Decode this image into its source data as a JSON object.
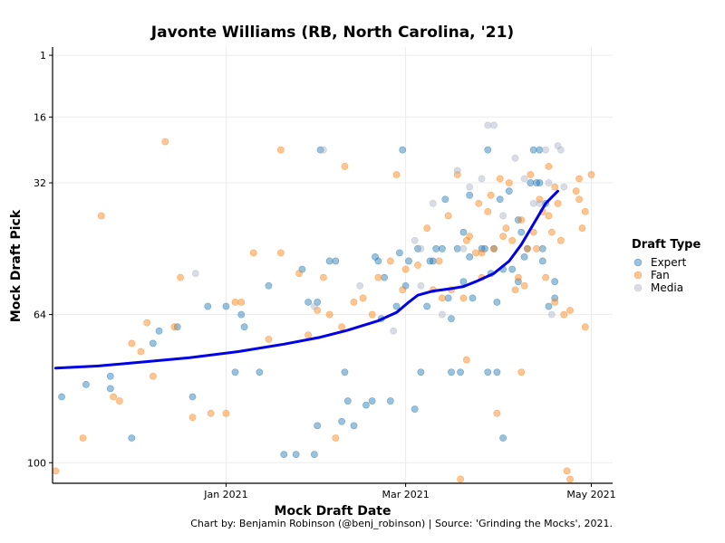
{
  "chart_data": {
    "type": "scatter",
    "title": "Javonte Williams (RB, North Carolina, '21)",
    "xlabel": "Mock Draft Date",
    "ylabel": "Mock Draft Pick",
    "caption": "Chart by: Benjamin Robinson (@benj_robinson) | Source: 'Grinding the Mocks', 2021.",
    "legend_title": "Draft Type",
    "legend_position": "right",
    "x_ticks": [
      {
        "label": "Jan 2021",
        "date": "2021-01-01"
      },
      {
        "label": "Mar 2021",
        "date": "2021-03-01"
      },
      {
        "label": "May 2021",
        "date": "2021-05-01"
      }
    ],
    "y_ticks": [
      1,
      16,
      32,
      64,
      100
    ],
    "xlim": [
      "2020-11-05",
      "2021-05-08"
    ],
    "ylim": [
      105,
      -1
    ],
    "y_reversed": true,
    "grid": true,
    "colors": {
      "Expert": "#1f77b4",
      "Fan": "#ff7f0e",
      "Media": "#aab2c4",
      "trend": "#0000e6"
    },
    "series": [
      {
        "name": "Expert",
        "points": [
          [
            "2020-11-08",
            84
          ],
          [
            "2020-11-16",
            81
          ],
          [
            "2020-11-24",
            82
          ],
          [
            "2020-11-24",
            79
          ],
          [
            "2020-12-01",
            94
          ],
          [
            "2020-12-08",
            71
          ],
          [
            "2020-12-10",
            68
          ],
          [
            "2020-12-16",
            67
          ],
          [
            "2020-12-21",
            84
          ],
          [
            "2020-12-26",
            62
          ],
          [
            "2021-01-01",
            62
          ],
          [
            "2021-01-04",
            78
          ],
          [
            "2021-01-06",
            64
          ],
          [
            "2021-01-07",
            67
          ],
          [
            "2021-01-12",
            78
          ],
          [
            "2021-01-15",
            57
          ],
          [
            "2021-01-20",
            98
          ],
          [
            "2021-01-24",
            98
          ],
          [
            "2021-01-26",
            53
          ],
          [
            "2021-01-28",
            61
          ],
          [
            "2021-01-30",
            98
          ],
          [
            "2021-01-31",
            61
          ],
          [
            "2021-01-31",
            91
          ],
          [
            "2021-02-01",
            24
          ],
          [
            "2021-02-04",
            51
          ],
          [
            "2021-02-06",
            51
          ],
          [
            "2021-02-08",
            90
          ],
          [
            "2021-02-09",
            78
          ],
          [
            "2021-02-10",
            85
          ],
          [
            "2021-02-12",
            91
          ],
          [
            "2021-02-16",
            86
          ],
          [
            "2021-02-18",
            85
          ],
          [
            "2021-02-19",
            50
          ],
          [
            "2021-02-20",
            51
          ],
          [
            "2021-02-21",
            65
          ],
          [
            "2021-02-22",
            55
          ],
          [
            "2021-02-24",
            85
          ],
          [
            "2021-02-26",
            62
          ],
          [
            "2021-02-27",
            49
          ],
          [
            "2021-02-28",
            24
          ],
          [
            "2021-03-01",
            57
          ],
          [
            "2021-03-02",
            51
          ],
          [
            "2021-03-04",
            87
          ],
          [
            "2021-03-05",
            48
          ],
          [
            "2021-03-06",
            78
          ],
          [
            "2021-03-08",
            62
          ],
          [
            "2021-03-09",
            51
          ],
          [
            "2021-03-10",
            51
          ],
          [
            "2021-03-11",
            48
          ],
          [
            "2021-03-13",
            48
          ],
          [
            "2021-03-14",
            36
          ],
          [
            "2021-03-15",
            60
          ],
          [
            "2021-03-16",
            65
          ],
          [
            "2021-03-16",
            78
          ],
          [
            "2021-03-18",
            48
          ],
          [
            "2021-03-19",
            78
          ],
          [
            "2021-03-20",
            44
          ],
          [
            "2021-03-20",
            56
          ],
          [
            "2021-03-22",
            35
          ],
          [
            "2021-03-22",
            50
          ],
          [
            "2021-03-23",
            60
          ],
          [
            "2021-03-26",
            48
          ],
          [
            "2021-03-27",
            48
          ],
          [
            "2021-03-28",
            24
          ],
          [
            "2021-03-28",
            78
          ],
          [
            "2021-03-29",
            54
          ],
          [
            "2021-03-30",
            48
          ],
          [
            "2021-03-31",
            61
          ],
          [
            "2021-03-31",
            78
          ],
          [
            "2021-04-01",
            36
          ],
          [
            "2021-04-02",
            94
          ],
          [
            "2021-04-02",
            53
          ],
          [
            "2021-04-04",
            34
          ],
          [
            "2021-04-05",
            53
          ],
          [
            "2021-04-07",
            56
          ],
          [
            "2021-04-07",
            41
          ],
          [
            "2021-04-08",
            44
          ],
          [
            "2021-04-09",
            50
          ],
          [
            "2021-04-10",
            48
          ],
          [
            "2021-04-11",
            32
          ],
          [
            "2021-04-12",
            24
          ],
          [
            "2021-04-13",
            32
          ],
          [
            "2021-04-14",
            24
          ],
          [
            "2021-04-14",
            32
          ],
          [
            "2021-04-15",
            51
          ],
          [
            "2021-04-15",
            48
          ],
          [
            "2021-04-16",
            37
          ],
          [
            "2021-04-17",
            62
          ],
          [
            "2021-04-19",
            60
          ],
          [
            "2021-04-19",
            56
          ]
        ]
      },
      {
        "name": "Fan",
        "points": [
          [
            "2020-11-06",
            102
          ],
          [
            "2020-11-15",
            94
          ],
          [
            "2020-11-21",
            40
          ],
          [
            "2020-11-25",
            84
          ],
          [
            "2020-11-27",
            85
          ],
          [
            "2020-12-01",
            71
          ],
          [
            "2020-12-04",
            73
          ],
          [
            "2020-12-06",
            66
          ],
          [
            "2020-12-08",
            79
          ],
          [
            "2020-12-12",
            22
          ],
          [
            "2020-12-15",
            67
          ],
          [
            "2020-12-17",
            55
          ],
          [
            "2020-12-21",
            89
          ],
          [
            "2020-12-27",
            88
          ],
          [
            "2021-01-01",
            88
          ],
          [
            "2021-01-04",
            61
          ],
          [
            "2021-01-06",
            61
          ],
          [
            "2021-01-10",
            49
          ],
          [
            "2021-01-15",
            70
          ],
          [
            "2021-01-19",
            49
          ],
          [
            "2021-01-19",
            24
          ],
          [
            "2021-01-25",
            54
          ],
          [
            "2021-01-28",
            69
          ],
          [
            "2021-01-31",
            63
          ],
          [
            "2021-02-02",
            55
          ],
          [
            "2021-02-04",
            64
          ],
          [
            "2021-02-06",
            94
          ],
          [
            "2021-02-08",
            67
          ],
          [
            "2021-02-09",
            28
          ],
          [
            "2021-02-12",
            61
          ],
          [
            "2021-02-15",
            60
          ],
          [
            "2021-02-18",
            64
          ],
          [
            "2021-02-20",
            55
          ],
          [
            "2021-02-24",
            51
          ],
          [
            "2021-02-26",
            30
          ],
          [
            "2021-02-28",
            58
          ],
          [
            "2021-03-01",
            53
          ],
          [
            "2021-03-05",
            52
          ],
          [
            "2021-03-08",
            43
          ],
          [
            "2021-03-10",
            58
          ],
          [
            "2021-03-12",
            51
          ],
          [
            "2021-03-13",
            60
          ],
          [
            "2021-03-15",
            40
          ],
          [
            "2021-03-16",
            58
          ],
          [
            "2021-03-18",
            30
          ],
          [
            "2021-03-19",
            104
          ],
          [
            "2021-03-20",
            60
          ],
          [
            "2021-03-21",
            46
          ],
          [
            "2021-03-21",
            75
          ],
          [
            "2021-03-22",
            45
          ],
          [
            "2021-03-24",
            49
          ],
          [
            "2021-03-25",
            37
          ],
          [
            "2021-03-26",
            55
          ],
          [
            "2021-03-26",
            49
          ],
          [
            "2021-03-28",
            39
          ],
          [
            "2021-03-29",
            35
          ],
          [
            "2021-03-30",
            48
          ],
          [
            "2021-03-31",
            88
          ],
          [
            "2021-04-01",
            31
          ],
          [
            "2021-04-02",
            45
          ],
          [
            "2021-04-03",
            43
          ],
          [
            "2021-04-04",
            32
          ],
          [
            "2021-04-05",
            46
          ],
          [
            "2021-04-06",
            58
          ],
          [
            "2021-04-07",
            55
          ],
          [
            "2021-04-08",
            78
          ],
          [
            "2021-04-08",
            41
          ],
          [
            "2021-04-09",
            57
          ],
          [
            "2021-04-10",
            48
          ],
          [
            "2021-04-11",
            30
          ],
          [
            "2021-04-12",
            44
          ],
          [
            "2021-04-13",
            48
          ],
          [
            "2021-04-14",
            36
          ],
          [
            "2021-04-15",
            39
          ],
          [
            "2021-04-16",
            55
          ],
          [
            "2021-04-17",
            40
          ],
          [
            "2021-04-17",
            28
          ],
          [
            "2021-04-18",
            44
          ],
          [
            "2021-04-19",
            61
          ],
          [
            "2021-04-19",
            33
          ],
          [
            "2021-04-20",
            37
          ],
          [
            "2021-04-21",
            46
          ],
          [
            "2021-04-22",
            64
          ],
          [
            "2021-04-23",
            102
          ],
          [
            "2021-04-24",
            104
          ],
          [
            "2021-04-24",
            63
          ],
          [
            "2021-04-26",
            34
          ],
          [
            "2021-04-27",
            31
          ],
          [
            "2021-04-27",
            36
          ],
          [
            "2021-04-28",
            43
          ],
          [
            "2021-04-29",
            67
          ],
          [
            "2021-04-29",
            39
          ],
          [
            "2021-05-01",
            30
          ]
        ]
      },
      {
        "name": "Media",
        "points": [
          [
            "2020-12-22",
            54
          ],
          [
            "2021-01-30",
            62
          ],
          [
            "2021-02-02",
            24
          ],
          [
            "2021-02-14",
            57
          ],
          [
            "2021-02-25",
            68
          ],
          [
            "2021-03-04",
            46
          ],
          [
            "2021-03-06",
            57
          ],
          [
            "2021-03-06",
            48
          ],
          [
            "2021-03-10",
            37
          ],
          [
            "2021-03-13",
            64
          ],
          [
            "2021-03-18",
            29
          ],
          [
            "2021-03-20",
            48
          ],
          [
            "2021-03-22",
            33
          ],
          [
            "2021-03-26",
            31
          ],
          [
            "2021-03-28",
            18
          ],
          [
            "2021-03-30",
            18
          ],
          [
            "2021-04-02",
            40
          ],
          [
            "2021-04-06",
            26
          ],
          [
            "2021-04-09",
            31
          ],
          [
            "2021-04-12",
            37
          ],
          [
            "2021-04-14",
            37
          ],
          [
            "2021-04-16",
            24
          ],
          [
            "2021-04-17",
            32
          ],
          [
            "2021-04-18",
            64
          ],
          [
            "2021-04-20",
            23
          ],
          [
            "2021-04-21",
            24
          ],
          [
            "2021-04-22",
            33
          ]
        ]
      }
    ],
    "trend": [
      [
        "2020-11-06",
        77
      ],
      [
        "2020-11-20",
        76.5
      ],
      [
        "2020-12-05",
        75.5
      ],
      [
        "2020-12-20",
        74.5
      ],
      [
        "2021-01-05",
        73
      ],
      [
        "2021-01-20",
        71.2
      ],
      [
        "2021-02-01",
        69.5
      ],
      [
        "2021-02-10",
        67.8
      ],
      [
        "2021-02-20",
        65.5
      ],
      [
        "2021-02-26",
        63.5
      ],
      [
        "2021-03-02",
        61
      ],
      [
        "2021-03-05",
        59.3
      ],
      [
        "2021-03-10",
        58.3
      ],
      [
        "2021-03-16",
        57.7
      ],
      [
        "2021-03-20",
        57.2
      ],
      [
        "2021-03-24",
        56
      ],
      [
        "2021-03-30",
        54
      ],
      [
        "2021-04-04",
        51
      ],
      [
        "2021-04-08",
        47
      ],
      [
        "2021-04-12",
        42
      ],
      [
        "2021-04-16",
        37
      ],
      [
        "2021-04-20",
        34
      ]
    ]
  }
}
